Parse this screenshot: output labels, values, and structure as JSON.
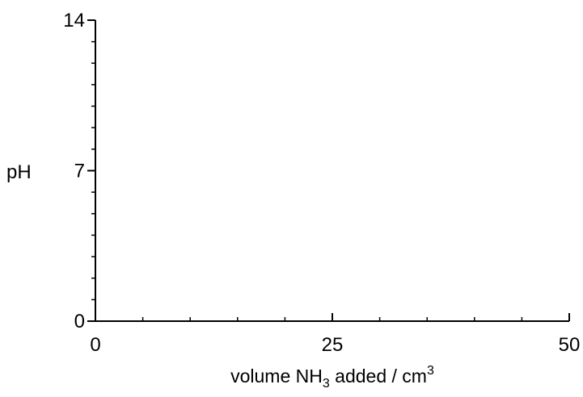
{
  "chart_data": {
    "type": "line",
    "title": "",
    "xlabel": {
      "prefix": "volume NH",
      "sub": "3",
      "middle": " added / cm",
      "sup": "3"
    },
    "ylabel": "pH",
    "xlim": [
      0,
      50
    ],
    "ylim": [
      0,
      14
    ],
    "x_major_ticks": [
      0,
      25,
      50
    ],
    "x_tick_labels": [
      "0",
      "25",
      "50"
    ],
    "x_minor_step": 5,
    "y_major_ticks": [
      0,
      7,
      14
    ],
    "y_tick_labels": [
      "0",
      "7",
      "14"
    ],
    "y_minor_step": 1,
    "grid": false,
    "series": []
  }
}
